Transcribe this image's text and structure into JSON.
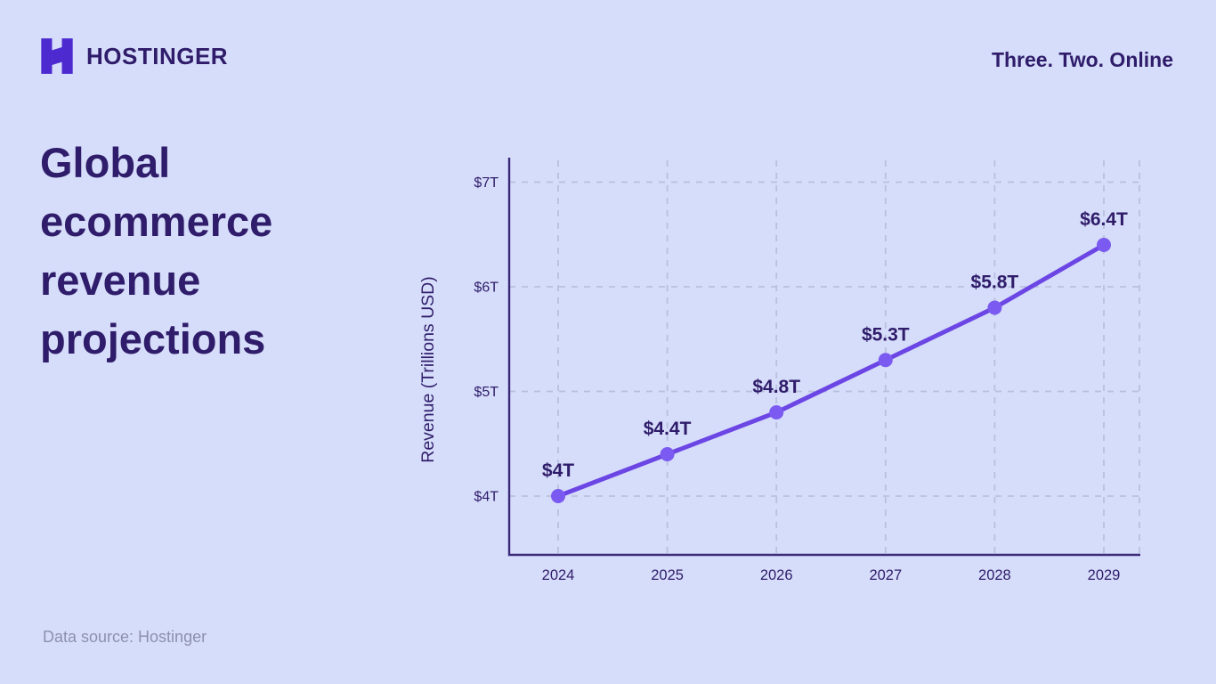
{
  "header": {
    "brand": "HOSTINGER",
    "tagline": "Three. Two. Online"
  },
  "title": {
    "lines": [
      "Global",
      "ecommerce",
      "revenue",
      "projections"
    ],
    "full": "Global ecommerce revenue projections"
  },
  "footer": {
    "source": "Data source: Hostinger"
  },
  "brand_colors": {
    "background": "#d6ddfa",
    "text": "#2f1c6a",
    "logo": "#4c2ad0"
  },
  "chart_data": {
    "type": "line",
    "categories": [
      "2024",
      "2025",
      "2026",
      "2027",
      "2028",
      "2029"
    ],
    "values": [
      4,
      4.4,
      4.8,
      5.3,
      5.8,
      6.4
    ],
    "point_labels": [
      "$4T",
      "$4.4T",
      "$4.8T",
      "$5.3T",
      "$5.8T",
      "$6.4T"
    ],
    "title": "",
    "xlabel": "",
    "ylabel": "Revenue (Trillions USD)",
    "yticks": [
      4,
      5,
      6,
      7
    ],
    "ytick_labels": [
      "$4T",
      "$5T",
      "$6T",
      "$7T"
    ],
    "ylim": [
      3.45,
      7.4
    ],
    "grid": true,
    "legend": "none",
    "colors": {
      "line": "#6b46e5",
      "point": "#7a5af0",
      "axis": "#3b2a7a",
      "grid": "#b9c0de",
      "label": "#2f1c6a",
      "tick": "#2f1c6a"
    }
  }
}
